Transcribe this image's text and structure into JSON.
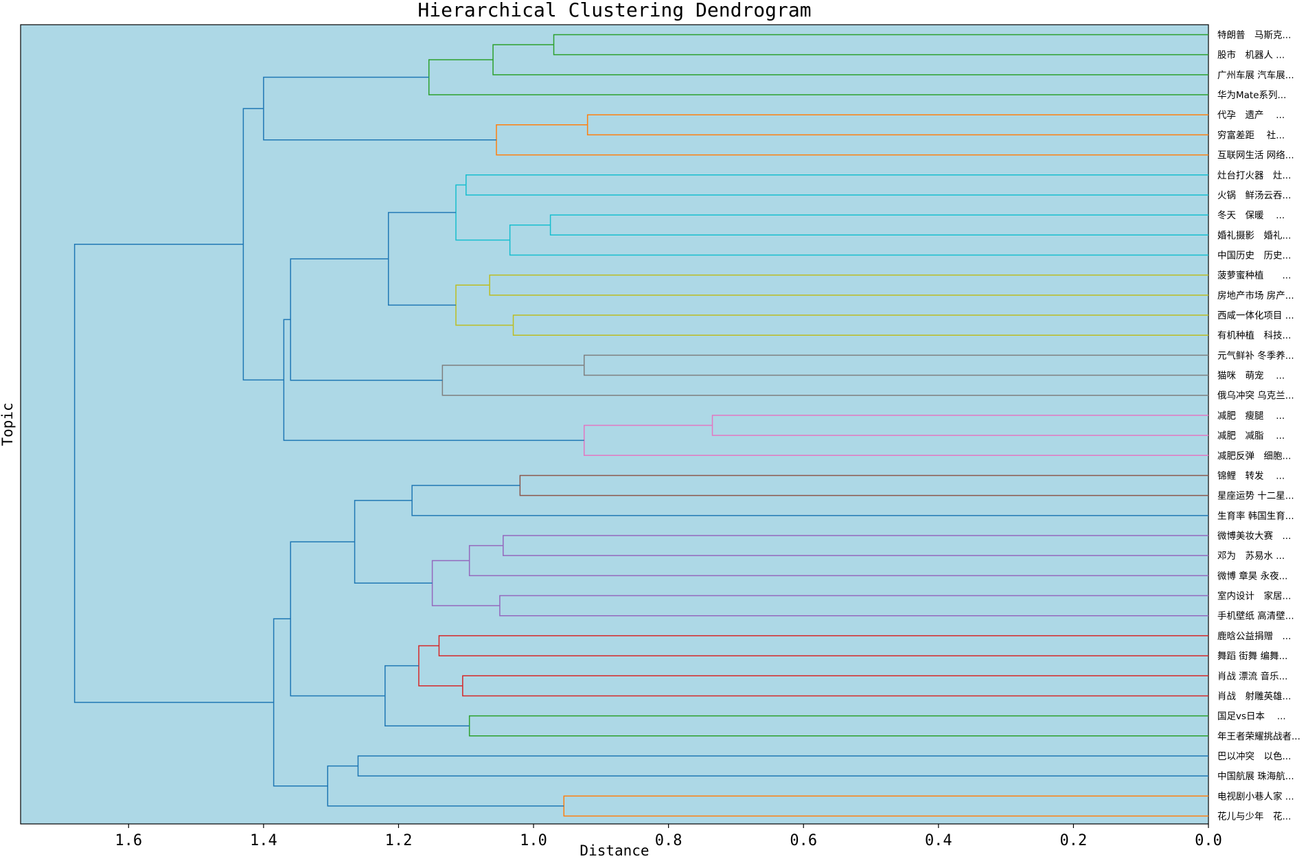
{
  "chart_data": {
    "type": "dendrogram",
    "title": "Hierarchical Clustering Dendrogram",
    "xlabel": "Distance",
    "ylabel": "Topic",
    "xlim": [
      1.76,
      0.0
    ],
    "x_ticks": [
      1.6,
      1.4,
      1.2,
      1.0,
      0.8,
      0.6,
      0.4,
      0.2,
      0.0
    ],
    "x_tick_labels": [
      "1.6",
      "1.4",
      "1.2",
      "1.0",
      "0.8",
      "0.6",
      "0.4",
      "0.2",
      "0.0"
    ],
    "background_color": "#add8e6",
    "leaves": [
      "特朗普　马斯克...",
      "股市　机器人 ...",
      "广州车展 汽车展...",
      "华为Mate系列...",
      "代孕　遗产　 ...",
      "穷富差距　 社...",
      "互联网生活 网络...",
      "灶台打火器　灶...",
      "火锅　鲜汤云吞...",
      "冬天　保暖　 ...",
      "婚礼摄影　婚礼...",
      "中国历史　历史...",
      "菠萝蜜种植　　...",
      "房地产市场 房产...",
      "西咸一体化项目 ...",
      "有机种植　科技...",
      "元气鲜补 冬季养...",
      "猫咪　萌宠　 ...",
      "俄乌冲突 乌克兰...",
      "减肥　瘦腿　 ...",
      "减肥　减脂　 ...",
      "减肥反弹　细胞...",
      "锦鲤　转发　 ...",
      "星座运势 十二星...",
      "生育率 韩国生育...",
      "微博美妆大赛　...",
      "邓为　苏易水 ...",
      "微博 章昊 永夜...",
      "室内设计　家居...",
      "手机壁纸 高清壁...",
      "鹿晗公益捐赠　...",
      "舞蹈 街舞 编舞...",
      "肖战 漂流 音乐...",
      "肖战　射雕英雄...",
      "国足vs日本　 ...",
      "年王者荣耀挑战者...",
      "巴以冲突　以色...",
      "中国航展 珠海航...",
      "电视剧小巷人家 ...",
      "花儿与少年　花..."
    ],
    "colors": {
      "green": "#2ca02c",
      "orange": "#ff7f0e",
      "cyan": "#17becf",
      "olive": "#bcbd22",
      "gray": "#7f7f7f",
      "pink": "#e377c2",
      "brown": "#8c564b",
      "purple": "#9467bd",
      "red": "#d62728",
      "blue": "#1f77b4"
    },
    "links": [
      {
        "id": "n0",
        "a": "L0",
        "b": "L1",
        "h": 0.97,
        "c": "green"
      },
      {
        "id": "n1",
        "a": "n0",
        "b": "L2",
        "h": 1.06,
        "c": "green"
      },
      {
        "id": "n2",
        "a": "n1",
        "b": "L3",
        "h": 1.155,
        "c": "green"
      },
      {
        "id": "n3",
        "a": "L4",
        "b": "L5",
        "h": 0.92,
        "c": "orange"
      },
      {
        "id": "n4",
        "a": "n3",
        "b": "L6",
        "h": 1.055,
        "c": "orange"
      },
      {
        "id": "n5",
        "a": "n2",
        "b": "n4",
        "h": 1.4,
        "c": "blue"
      },
      {
        "id": "n6",
        "a": "L7",
        "b": "L8",
        "h": 1.1,
        "c": "cyan"
      },
      {
        "id": "n7",
        "a": "L9",
        "b": "L10",
        "h": 0.975,
        "c": "cyan"
      },
      {
        "id": "n8",
        "a": "n7",
        "b": "L11",
        "h": 1.035,
        "c": "cyan"
      },
      {
        "id": "n9",
        "a": "n6",
        "b": "n8",
        "h": 1.115,
        "c": "cyan"
      },
      {
        "id": "n10",
        "a": "L12",
        "b": "L13",
        "h": 1.065,
        "c": "olive"
      },
      {
        "id": "n11",
        "a": "L14",
        "b": "L15",
        "h": 1.03,
        "c": "olive"
      },
      {
        "id": "n12",
        "a": "n10",
        "b": "n11",
        "h": 1.115,
        "c": "olive"
      },
      {
        "id": "n13",
        "a": "n9",
        "b": "n12",
        "h": 1.215,
        "c": "blue"
      },
      {
        "id": "n14",
        "a": "L16",
        "b": "L17",
        "h": 0.925,
        "c": "gray"
      },
      {
        "id": "n15",
        "a": "n14",
        "b": "L18",
        "h": 1.135,
        "c": "gray"
      },
      {
        "id": "n16",
        "a": "n13",
        "b": "n15",
        "h": 1.36,
        "c": "blue"
      },
      {
        "id": "n17",
        "a": "L19",
        "b": "L20",
        "h": 0.735,
        "c": "pink"
      },
      {
        "id": "n18",
        "a": "n17",
        "b": "L21",
        "h": 0.925,
        "c": "pink"
      },
      {
        "id": "n19",
        "a": "n16",
        "b": "n18",
        "h": 1.37,
        "c": "blue"
      },
      {
        "id": "n20",
        "a": "n5",
        "b": "n19",
        "h": 1.43,
        "c": "blue"
      },
      {
        "id": "n21",
        "a": "L22",
        "b": "L23",
        "h": 1.02,
        "c": "brown"
      },
      {
        "id": "n22",
        "a": "n21",
        "b": "L24",
        "h": 1.18,
        "c": "blue"
      },
      {
        "id": "n23",
        "a": "L25",
        "b": "L26",
        "h": 1.045,
        "c": "purple"
      },
      {
        "id": "n24",
        "a": "n23",
        "b": "L27",
        "h": 1.095,
        "c": "purple"
      },
      {
        "id": "n25",
        "a": "L28",
        "b": "L29",
        "h": 1.05,
        "c": "purple"
      },
      {
        "id": "n26",
        "a": "n24",
        "b": "n25",
        "h": 1.15,
        "c": "purple"
      },
      {
        "id": "n27",
        "a": "n22",
        "b": "n26",
        "h": 1.265,
        "c": "blue"
      },
      {
        "id": "n28",
        "a": "L30",
        "b": "L31",
        "h": 1.14,
        "c": "red"
      },
      {
        "id": "n29",
        "a": "L32",
        "b": "L33",
        "h": 1.105,
        "c": "red"
      },
      {
        "id": "n30",
        "a": "n28",
        "b": "n29",
        "h": 1.17,
        "c": "red"
      },
      {
        "id": "n31",
        "a": "L34",
        "b": "L35",
        "h": 1.095,
        "c": "green"
      },
      {
        "id": "n32",
        "a": "n30",
        "b": "n31",
        "h": 1.22,
        "c": "blue"
      },
      {
        "id": "n33",
        "a": "n27",
        "b": "n32",
        "h": 1.36,
        "c": "blue"
      },
      {
        "id": "n34",
        "a": "L36",
        "b": "L37",
        "h": 1.26,
        "c": "blue"
      },
      {
        "id": "n35",
        "a": "L38",
        "b": "L39",
        "h": 0.955,
        "c": "orange"
      },
      {
        "id": "n36",
        "a": "n34",
        "b": "n35",
        "h": 1.305,
        "c": "blue"
      },
      {
        "id": "n37",
        "a": "n33",
        "b": "n36",
        "h": 1.385,
        "c": "blue"
      },
      {
        "id": "n38",
        "a": "n20",
        "b": "n37",
        "h": 1.68,
        "c": "blue"
      }
    ]
  }
}
